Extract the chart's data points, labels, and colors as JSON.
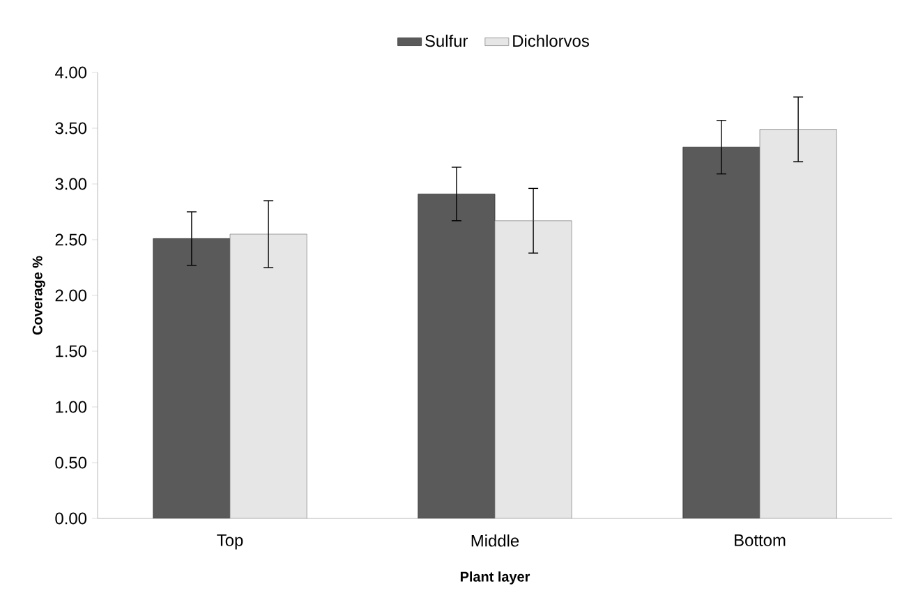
{
  "chart_data": {
    "type": "bar",
    "xlabel": "Plant layer",
    "ylabel": "Coverage %",
    "categories": [
      "Top",
      "Middle",
      "Bottom"
    ],
    "series": [
      {
        "name": "Sulfur",
        "color": "#5a5a5a",
        "values": [
          2.51,
          2.91,
          3.33
        ],
        "errors": [
          0.24,
          0.24,
          0.24
        ]
      },
      {
        "name": "Dichlorvos",
        "color": "#e6e6e6",
        "values": [
          2.55,
          2.67,
          3.49
        ],
        "errors": [
          0.3,
          0.29,
          0.29
        ]
      }
    ],
    "ylim": [
      0,
      4
    ],
    "yticks": [
      {
        "value": 0,
        "label": "0.00"
      },
      {
        "value": 0.5,
        "label": "0.50"
      },
      {
        "value": 1,
        "label": "1.00"
      },
      {
        "value": 1.5,
        "label": "1.50"
      },
      {
        "value": 2,
        "label": "2.00"
      },
      {
        "value": 2.5,
        "label": "2.50"
      },
      {
        "value": 3,
        "label": "3.00"
      },
      {
        "value": 3.5,
        "label": "3.50"
      },
      {
        "value": 4,
        "label": "4.00"
      }
    ],
    "legend": "top",
    "grid": false
  }
}
